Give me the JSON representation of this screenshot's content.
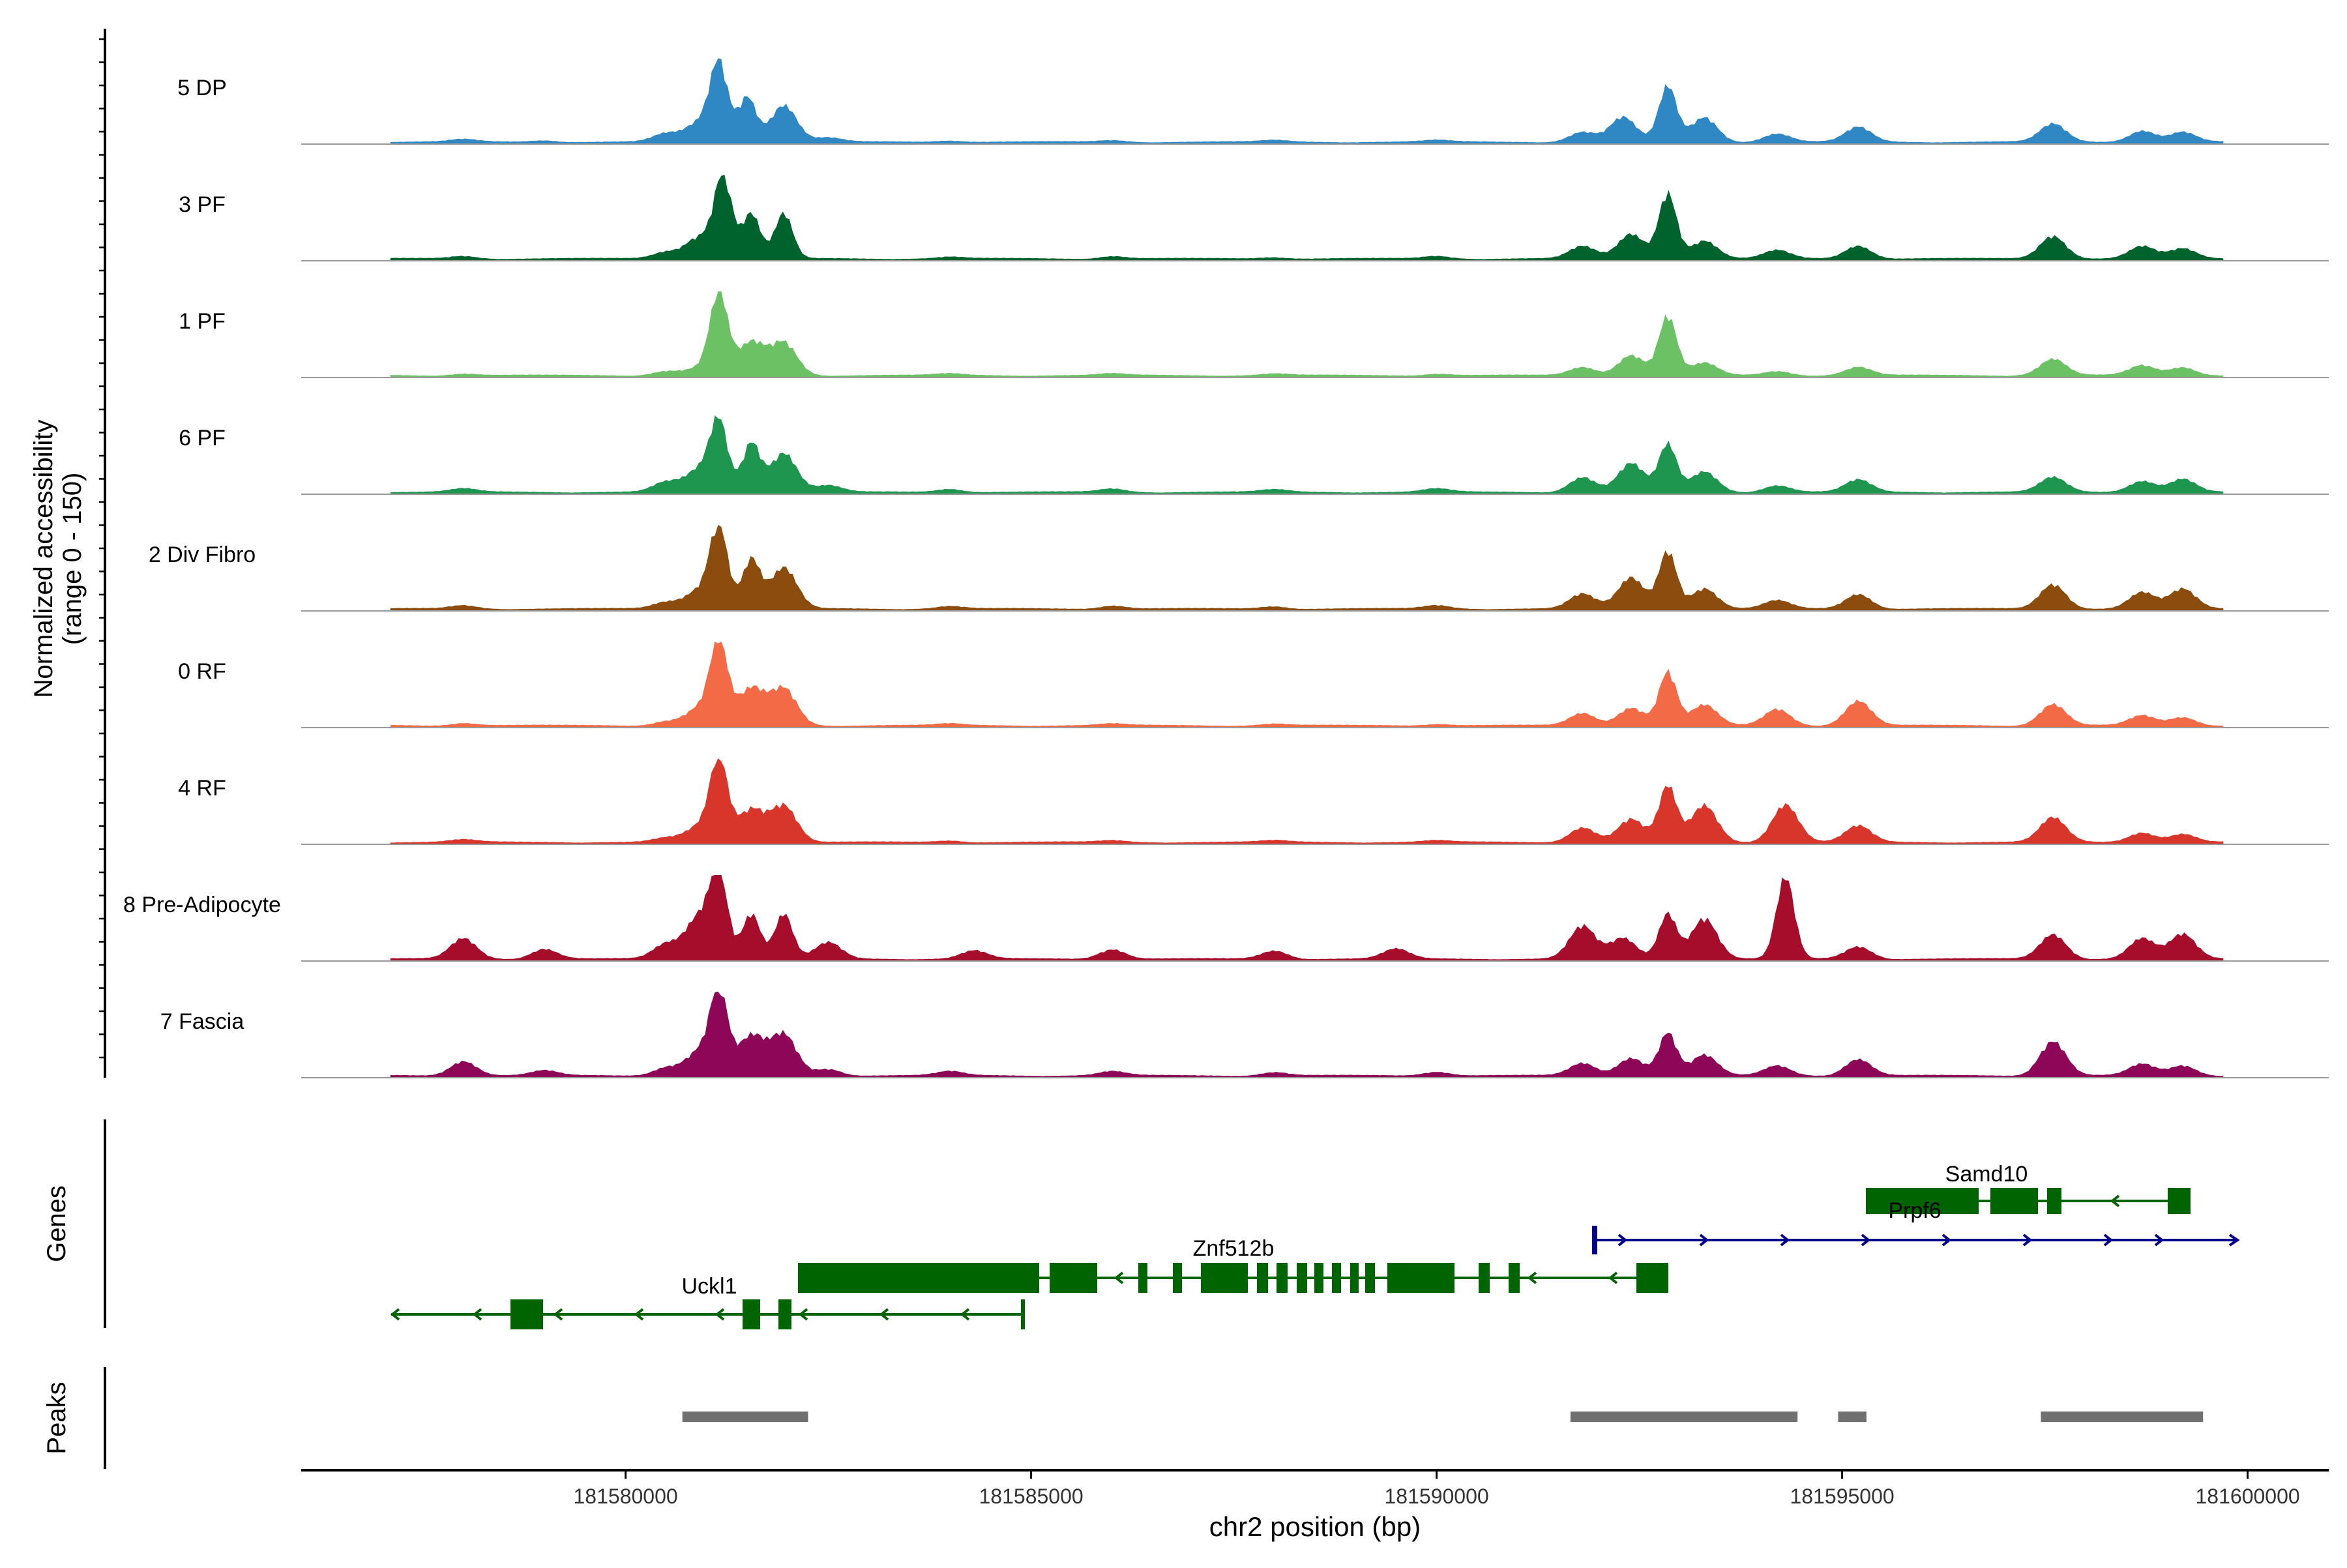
{
  "chart_data": {
    "type": "coverage",
    "xlabel": "chr2 position (bp)",
    "ylabel_line1": "Normalized accessibility",
    "ylabel_line2": "(range 0 - 150)",
    "y_range": [
      0,
      150
    ],
    "xlim": [
      181576000,
      181601000
    ],
    "x_ticks": [
      181580000,
      181585000,
      181590000,
      181595000,
      181600000
    ],
    "x_tick_labels": [
      "181580000",
      "181585000",
      "181590000",
      "181595000",
      "181600000"
    ],
    "genes_label": "Genes",
    "peaks_label": "Peaks",
    "tracks": [
      {
        "name": "5 DP",
        "color": "#2F87C4"
      },
      {
        "name": "3 PF",
        "color": "#00622C"
      },
      {
        "name": "1 PF",
        "color": "#6CC165"
      },
      {
        "name": "6 PF",
        "color": "#1E9650"
      },
      {
        "name": "2 Div Fibro",
        "color": "#8B4C0D"
      },
      {
        "name": "0 RF",
        "color": "#F26B46"
      },
      {
        "name": "4 RF",
        "color": "#D8362B"
      },
      {
        "name": "8 Pre-Adipocyte",
        "color": "#A50D2A"
      },
      {
        "name": "7 Fascia",
        "color": "#8E0657"
      }
    ],
    "coverage_region": [
      181577100,
      181599700
    ],
    "track_peaks": [
      [
        [
          181578000,
          0.03
        ],
        [
          181579000,
          0.02
        ],
        [
          181580500,
          0.1
        ],
        [
          181580900,
          0.22
        ],
        [
          181581150,
          0.95
        ],
        [
          181581500,
          0.55
        ],
        [
          181581950,
          0.45
        ],
        [
          181582500,
          0.05
        ],
        [
          181584000,
          0.02
        ],
        [
          181586000,
          0.02
        ],
        [
          181588000,
          0.02
        ],
        [
          181590000,
          0.02
        ],
        [
          181591800,
          0.12
        ],
        [
          181592300,
          0.3
        ],
        [
          181592850,
          0.68
        ],
        [
          181593300,
          0.3
        ],
        [
          181594200,
          0.1
        ],
        [
          181595200,
          0.18
        ],
        [
          181597600,
          0.22
        ],
        [
          181598700,
          0.14
        ],
        [
          181599200,
          0.12
        ]
      ],
      [
        [
          181578000,
          0.03
        ],
        [
          181580500,
          0.08
        ],
        [
          181580900,
          0.26
        ],
        [
          181581200,
          1.0
        ],
        [
          181581550,
          0.55
        ],
        [
          181581950,
          0.55
        ],
        [
          181584000,
          0.02
        ],
        [
          181586000,
          0.03
        ],
        [
          181588000,
          0.02
        ],
        [
          181590000,
          0.03
        ],
        [
          181591800,
          0.15
        ],
        [
          181592400,
          0.3
        ],
        [
          181592850,
          0.8
        ],
        [
          181593300,
          0.22
        ],
        [
          181594200,
          0.1
        ],
        [
          181595200,
          0.16
        ],
        [
          181597600,
          0.28
        ],
        [
          181598700,
          0.15
        ],
        [
          181599200,
          0.12
        ]
      ],
      [
        [
          181578000,
          0.02
        ],
        [
          181580500,
          0.05
        ],
        [
          181580900,
          0.08
        ],
        [
          181581150,
          1.0
        ],
        [
          181581550,
          0.4
        ],
        [
          181581950,
          0.4
        ],
        [
          181584000,
          0.02
        ],
        [
          181586000,
          0.02
        ],
        [
          181588000,
          0.02
        ],
        [
          181590000,
          0.02
        ],
        [
          181591800,
          0.1
        ],
        [
          181592400,
          0.25
        ],
        [
          181592850,
          0.72
        ],
        [
          181593300,
          0.15
        ],
        [
          181594200,
          0.05
        ],
        [
          181595200,
          0.1
        ],
        [
          181597600,
          0.2
        ],
        [
          181598700,
          0.12
        ],
        [
          181599200,
          0.1
        ]
      ],
      [
        [
          181578000,
          0.04
        ],
        [
          181580500,
          0.12
        ],
        [
          181580900,
          0.26
        ],
        [
          181581150,
          0.85
        ],
        [
          181581550,
          0.6
        ],
        [
          181581950,
          0.48
        ],
        [
          181582500,
          0.08
        ],
        [
          181584000,
          0.04
        ],
        [
          181586000,
          0.04
        ],
        [
          181588000,
          0.03
        ],
        [
          181590000,
          0.04
        ],
        [
          181591800,
          0.18
        ],
        [
          181592400,
          0.35
        ],
        [
          181592850,
          0.58
        ],
        [
          181593300,
          0.25
        ],
        [
          181594200,
          0.08
        ],
        [
          181595200,
          0.15
        ],
        [
          181597600,
          0.18
        ],
        [
          181598700,
          0.14
        ],
        [
          181599200,
          0.16
        ]
      ],
      [
        [
          181578000,
          0.04
        ],
        [
          181580500,
          0.08
        ],
        [
          181580900,
          0.22
        ],
        [
          181581150,
          1.0
        ],
        [
          181581550,
          0.6
        ],
        [
          181581950,
          0.5
        ],
        [
          181584000,
          0.03
        ],
        [
          181586000,
          0.04
        ],
        [
          181588000,
          0.03
        ],
        [
          181590000,
          0.04
        ],
        [
          181591800,
          0.18
        ],
        [
          181592400,
          0.38
        ],
        [
          181592850,
          0.7
        ],
        [
          181593300,
          0.25
        ],
        [
          181594200,
          0.1
        ],
        [
          181595200,
          0.18
        ],
        [
          181597600,
          0.3
        ],
        [
          181598700,
          0.2
        ],
        [
          181599200,
          0.24
        ]
      ],
      [
        [
          181578000,
          0.03
        ],
        [
          181580500,
          0.05
        ],
        [
          181580900,
          0.2
        ],
        [
          181581150,
          1.0
        ],
        [
          181581550,
          0.45
        ],
        [
          181581950,
          0.45
        ],
        [
          181584000,
          0.02
        ],
        [
          181586000,
          0.02
        ],
        [
          181588000,
          0.02
        ],
        [
          181590000,
          0.02
        ],
        [
          181591800,
          0.15
        ],
        [
          181592400,
          0.22
        ],
        [
          181592850,
          0.65
        ],
        [
          181593300,
          0.25
        ],
        [
          181594200,
          0.2
        ],
        [
          181595200,
          0.3
        ],
        [
          181597600,
          0.26
        ],
        [
          181598700,
          0.12
        ],
        [
          181599200,
          0.1
        ]
      ],
      [
        [
          181578000,
          0.03
        ],
        [
          181580500,
          0.05
        ],
        [
          181580900,
          0.18
        ],
        [
          181581150,
          1.0
        ],
        [
          181581550,
          0.4
        ],
        [
          181581950,
          0.45
        ],
        [
          181584000,
          0.02
        ],
        [
          181586000,
          0.02
        ],
        [
          181588000,
          0.02
        ],
        [
          181590000,
          0.02
        ],
        [
          181591800,
          0.18
        ],
        [
          181592400,
          0.28
        ],
        [
          181592850,
          0.68
        ],
        [
          181593300,
          0.45
        ],
        [
          181594300,
          0.46
        ],
        [
          181595200,
          0.2
        ],
        [
          181597600,
          0.3
        ],
        [
          181598700,
          0.12
        ],
        [
          181599200,
          0.1
        ]
      ],
      [
        [
          181578000,
          0.25
        ],
        [
          181579000,
          0.12
        ],
        [
          181580500,
          0.18
        ],
        [
          181580900,
          0.5
        ],
        [
          181581150,
          1.0
        ],
        [
          181581550,
          0.55
        ],
        [
          181581950,
          0.55
        ],
        [
          181582500,
          0.2
        ],
        [
          181584300,
          0.1
        ],
        [
          181586000,
          0.12
        ],
        [
          181588000,
          0.1
        ],
        [
          181589500,
          0.12
        ],
        [
          181591800,
          0.4
        ],
        [
          181592300,
          0.25
        ],
        [
          181592850,
          0.55
        ],
        [
          181593300,
          0.5
        ],
        [
          181594300,
          1.0
        ],
        [
          181595200,
          0.15
        ],
        [
          181597600,
          0.3
        ],
        [
          181598700,
          0.25
        ],
        [
          181599200,
          0.3
        ]
      ],
      [
        [
          181578000,
          0.18
        ],
        [
          181579000,
          0.06
        ],
        [
          181580500,
          0.1
        ],
        [
          181580900,
          0.28
        ],
        [
          181581150,
          1.0
        ],
        [
          181581550,
          0.48
        ],
        [
          181581950,
          0.5
        ],
        [
          181582500,
          0.08
        ],
        [
          181584000,
          0.05
        ],
        [
          181586000,
          0.05
        ],
        [
          181588000,
          0.04
        ],
        [
          181590000,
          0.05
        ],
        [
          181591800,
          0.15
        ],
        [
          181592400,
          0.22
        ],
        [
          181592850,
          0.52
        ],
        [
          181593300,
          0.25
        ],
        [
          181594200,
          0.12
        ],
        [
          181595200,
          0.2
        ],
        [
          181597600,
          0.42
        ],
        [
          181598700,
          0.14
        ],
        [
          181599200,
          0.12
        ]
      ]
    ],
    "genes": [
      {
        "name": "Samd10",
        "strand": "-",
        "start": 181595200,
        "end": 181599100
      },
      {
        "name": "Prpf6",
        "strand": "+",
        "start": 181591850,
        "end": 181599800
      },
      {
        "name": "Znf512b",
        "strand": "-",
        "start": 181582100,
        "end": 181592750
      },
      {
        "name": "Uckl1",
        "strand": "-",
        "start": 181577100,
        "end": 181584900
      }
    ],
    "peaks": [
      {
        "start": 181580700,
        "end": 181582250
      },
      {
        "start": 181591650,
        "end": 181594450
      },
      {
        "start": 181594950,
        "end": 181595300
      },
      {
        "start": 181597450,
        "end": 181599450
      }
    ]
  }
}
